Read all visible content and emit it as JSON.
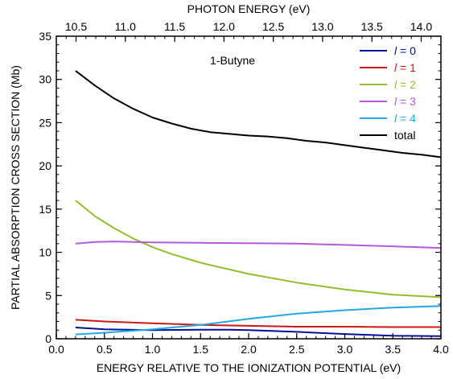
{
  "chart_data": {
    "type": "line",
    "title": "",
    "annotation": "1-Butyne",
    "xlabel": "ENERGY RELATIVE TO THE IONIZATION POTENTIAL  (eV)",
    "x2label": "PHOTON ENERGY  (eV)",
    "ylabel": "PARTIAL ABSORPTION CROSS SECTION  (Mb)",
    "xlim": [
      0.0,
      4.0
    ],
    "ylim": [
      0,
      35
    ],
    "x2lim": [
      10.3,
      14.2
    ],
    "xticks": [
      "0.0",
      "0.5",
      "1.0",
      "1.5",
      "2.0",
      "2.5",
      "3.0",
      "3.5",
      "4.0"
    ],
    "yticks": [
      "0",
      "5",
      "10",
      "15",
      "20",
      "25",
      "30",
      "35"
    ],
    "x2ticks": [
      "10.5",
      "11.0",
      "11.5",
      "12.0",
      "12.5",
      "13.0",
      "13.5",
      "14.0"
    ],
    "grid": false,
    "legend_position": "top-right",
    "series": [
      {
        "name": "= 0",
        "prefix": "l",
        "color": "#00129b",
        "x": [
          0.2,
          0.5,
          1.0,
          1.5,
          1.8,
          2.0,
          2.5,
          3.0,
          3.5,
          4.0
        ],
        "y": [
          1.3,
          1.1,
          1.0,
          1.05,
          1.05,
          1.0,
          0.8,
          0.55,
          0.35,
          0.3
        ]
      },
      {
        "name": "= 1",
        "prefix": "l",
        "color": "#cc1a1a",
        "x": [
          0.2,
          0.5,
          1.0,
          1.5,
          2.0,
          2.5,
          3.0,
          3.5,
          4.0
        ],
        "y": [
          2.2,
          2.0,
          1.8,
          1.6,
          1.5,
          1.4,
          1.4,
          1.35,
          1.35
        ]
      },
      {
        "name": "= 2",
        "prefix": "l",
        "color": "#93bd2f",
        "x": [
          0.2,
          0.4,
          0.6,
          0.8,
          1.0,
          1.2,
          1.5,
          2.0,
          2.5,
          3.0,
          3.5,
          4.0
        ],
        "y": [
          16.0,
          14.2,
          12.8,
          11.6,
          10.6,
          9.8,
          8.8,
          7.5,
          6.5,
          5.7,
          5.1,
          4.8
        ]
      },
      {
        "name": "= 3",
        "prefix": "l",
        "color": "#b35ad6",
        "x": [
          0.2,
          0.4,
          0.6,
          1.0,
          1.5,
          2.0,
          2.5,
          3.0,
          3.5,
          4.0
        ],
        "y": [
          11.0,
          11.2,
          11.25,
          11.15,
          11.1,
          11.05,
          11.0,
          10.85,
          10.7,
          10.5
        ]
      },
      {
        "name": "= 4",
        "prefix": "l",
        "color": "#22a9e0",
        "x": [
          0.2,
          0.5,
          1.0,
          1.5,
          2.0,
          2.5,
          3.0,
          3.5,
          4.0
        ],
        "y": [
          0.5,
          0.7,
          1.1,
          1.6,
          2.3,
          2.9,
          3.3,
          3.6,
          3.8
        ]
      },
      {
        "name": "total",
        "prefix": "",
        "color": "#000000",
        "x": [
          0.2,
          0.4,
          0.6,
          0.8,
          1.0,
          1.2,
          1.4,
          1.6,
          1.8,
          2.0,
          2.2,
          2.4,
          2.6,
          2.8,
          3.0,
          3.2,
          3.4,
          3.6,
          3.8,
          4.0
        ],
        "y": [
          31.0,
          29.3,
          27.8,
          26.6,
          25.6,
          24.9,
          24.3,
          23.9,
          23.7,
          23.5,
          23.4,
          23.2,
          22.9,
          22.7,
          22.4,
          22.1,
          21.8,
          21.5,
          21.3,
          21.0
        ]
      }
    ]
  }
}
